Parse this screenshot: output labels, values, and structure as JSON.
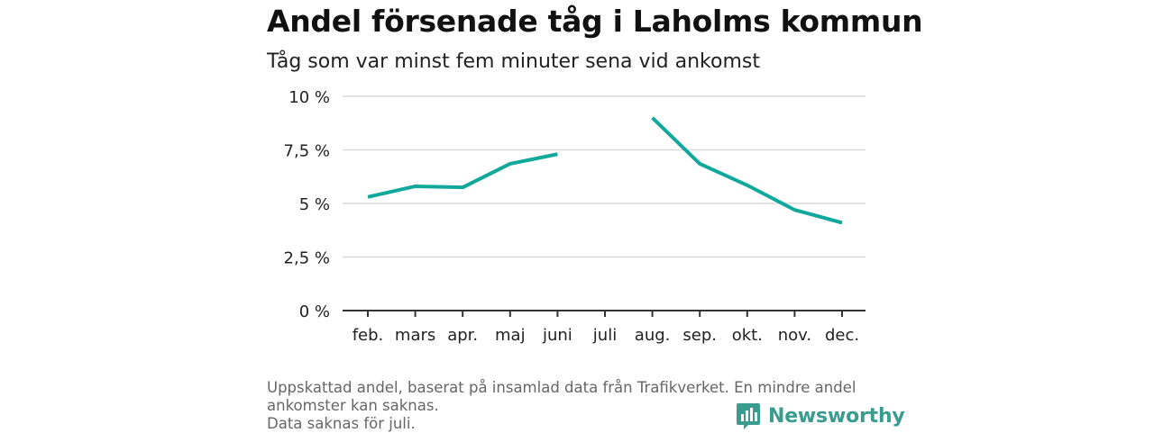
{
  "header": {
    "title": "Andel försenade tåg i Laholms kommun",
    "subtitle": "Tåg som var minst fem minuter sena vid ankomst"
  },
  "chart_data": {
    "type": "line",
    "categories": [
      "feb.",
      "mars",
      "apr.",
      "maj",
      "juni",
      "juli",
      "aug.",
      "sep.",
      "okt.",
      "nov.",
      "dec."
    ],
    "series": [
      {
        "values": [
          5.3,
          5.8,
          5.75,
          6.85,
          7.3,
          null,
          9.0,
          6.85,
          5.85,
          4.7,
          4.1
        ]
      }
    ],
    "yticks": [
      {
        "value": 0,
        "label": "0 %"
      },
      {
        "value": 2.5,
        "label": "2,5 %"
      },
      {
        "value": 5,
        "label": "5 %"
      },
      {
        "value": 7.5,
        "label": "7,5 %"
      },
      {
        "value": 10,
        "label": "10 %"
      }
    ],
    "ylim": [
      0,
      10
    ],
    "grid": true,
    "color": "#10a89a"
  },
  "footer": {
    "note_line1": "Uppskattad andel, baserat på insamlad data från Trafikverket. En mindre andel",
    "note_line2": "ankomster kan saknas.",
    "note_line3": "Data saknas för juli.",
    "brand": "Newsworthy",
    "brand_icon": "newsworthy-logo-icon",
    "brand_color": "#3a9c8e"
  }
}
